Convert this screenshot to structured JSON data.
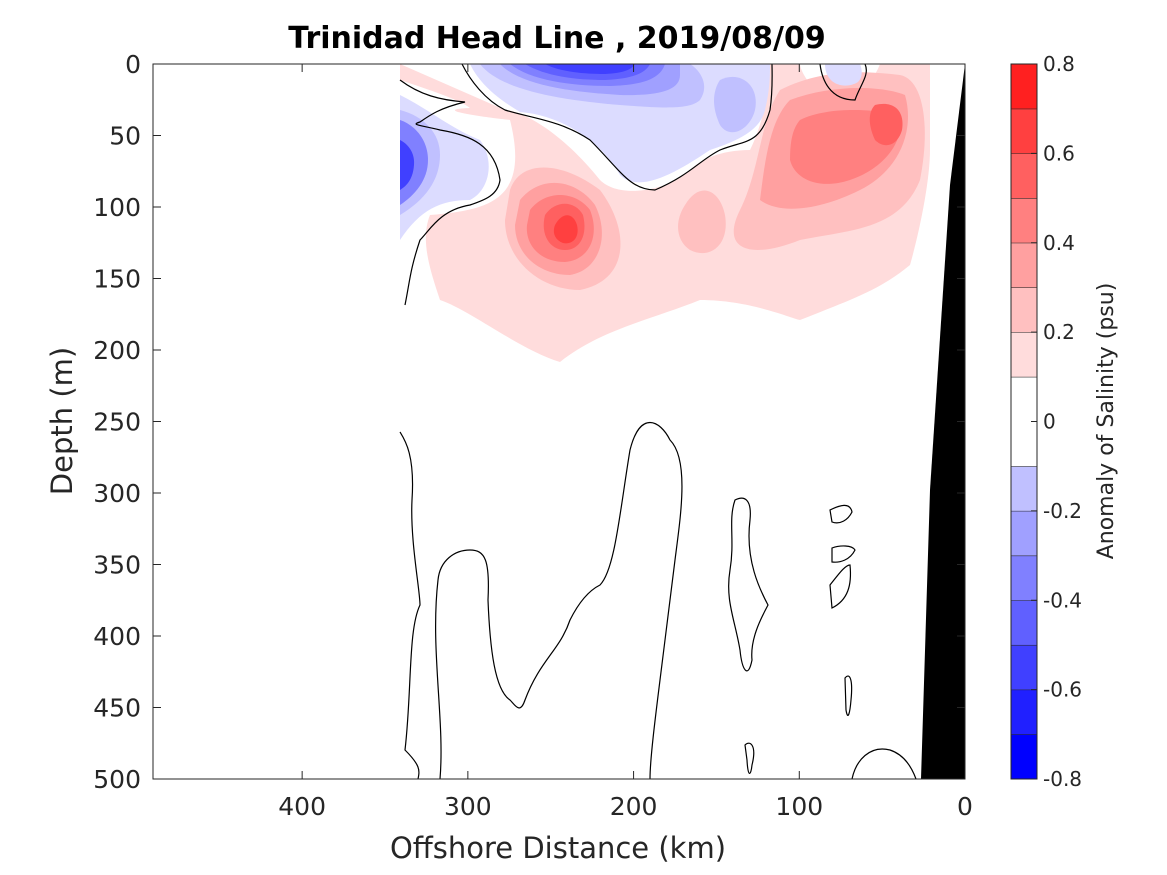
{
  "chart_data": {
    "type": "heatmap",
    "title": "Trinidad Head Line , 2019/08/09",
    "xlabel": "Offshore Distance (km)",
    "ylabel": "Depth (m)",
    "xlim": [
      490,
      0
    ],
    "ylim": [
      0,
      500
    ],
    "x_reversed": true,
    "y_reversed": true,
    "xticks": [
      400,
      300,
      200,
      100,
      0
    ],
    "yticks": [
      0,
      50,
      100,
      150,
      200,
      250,
      300,
      350,
      400,
      450,
      500
    ],
    "colorbar": {
      "label": "Anomaly of Salinity (psu)",
      "range": [
        -0.8,
        0.8
      ],
      "ticks": [
        0.8,
        0.6,
        0.4,
        0.2,
        0,
        -0.2,
        -0.4,
        -0.6,
        -0.8
      ],
      "tick_labels": [
        "0.8",
        "0.6",
        "0.4",
        "0.2",
        "0",
        "-0.2",
        "-0.4",
        "-0.6",
        "-0.8"
      ],
      "levels": [
        -0.8,
        -0.7,
        -0.6,
        -0.5,
        -0.4,
        -0.3,
        -0.2,
        -0.1,
        0.1,
        0.2,
        0.3,
        0.4,
        0.5,
        0.6,
        0.7,
        0.8
      ],
      "colors": [
        "#0000ff",
        "#2020ff",
        "#4040ff",
        "#6060ff",
        "#8080ff",
        "#a0a0ff",
        "#c0c0ff",
        "#dcdcff",
        "#ffffff",
        "#ffdcdc",
        "#ffc0c0",
        "#ffa0a0",
        "#ff8080",
        "#ff6060",
        "#ff4040",
        "#ff2020",
        "#ff0000"
      ]
    },
    "features": [
      {
        "name": "surface fresh anomaly",
        "x_range": [
          270,
          120
        ],
        "depth_range": [
          0,
          90
        ],
        "min_value": -0.7
      },
      {
        "name": "inshore fresh anomaly",
        "x_range": [
          340,
          310
        ],
        "depth_range": [
          30,
          120
        ],
        "min_value": -0.6
      },
      {
        "name": "subsurface salty core",
        "x_range": [
          280,
          200
        ],
        "depth_range": [
          70,
          200
        ],
        "max_value": 0.6
      },
      {
        "name": "nearshore salty region",
        "x_range": [
          130,
          20
        ],
        "depth_range": [
          0,
          170
        ],
        "max_value": 0.5
      }
    ],
    "bottom": {
      "color": "#000000",
      "x": [
        5,
        3,
        0
      ],
      "depth": [
        0,
        100,
        500
      ]
    },
    "grid": false
  }
}
